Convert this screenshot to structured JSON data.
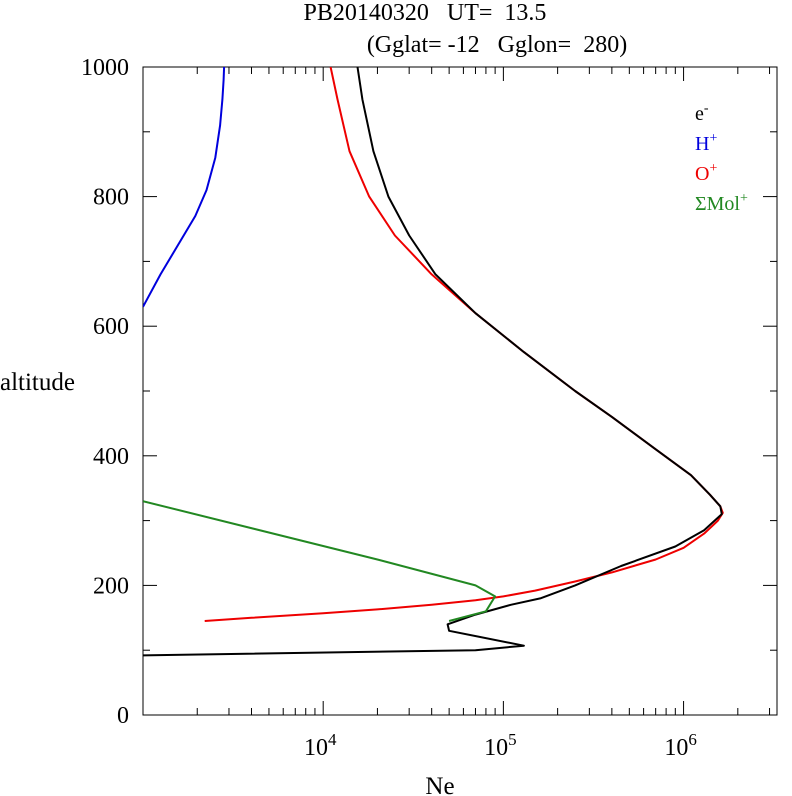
{
  "chart_data": {
    "type": "line",
    "title": "PB20140320   UT=  13.5",
    "subtitle": "(Gglat= -12   Gglon=  280)",
    "xlabel": "Ne",
    "ylabel": "altitude",
    "xscale": "log",
    "xlim": [
      1000,
      3300000
    ],
    "ylim": [
      0,
      1000
    ],
    "x_ticks": [
      {
        "value": 10000,
        "base": "10",
        "exp": "4"
      },
      {
        "value": 100000,
        "base": "10",
        "exp": "5"
      },
      {
        "value": 1000000,
        "base": "10",
        "exp": "6"
      }
    ],
    "y_ticks": [
      {
        "value": 0,
        "label": "0"
      },
      {
        "value": 200,
        "label": "200"
      },
      {
        "value": 400,
        "label": "400"
      },
      {
        "value": 600,
        "label": "600"
      },
      {
        "value": 800,
        "label": "800"
      },
      {
        "value": 1000,
        "label": "1000"
      }
    ],
    "grid": false,
    "legend_position": "top-right",
    "series": [
      {
        "name": "H",
        "sup": "+",
        "color": "#0000dd",
        "points": [
          [
            1000,
            630
          ],
          [
            1250,
            680
          ],
          [
            1600,
            730
          ],
          [
            1950,
            770
          ],
          [
            2250,
            810
          ],
          [
            2520,
            860
          ],
          [
            2680,
            910
          ],
          [
            2760,
            950
          ],
          [
            2800,
            980
          ],
          [
            2820,
            1000
          ]
        ]
      },
      {
        "name": "O",
        "sup": "+",
        "color": "#ee0000",
        "points": [
          [
            2200,
            145
          ],
          [
            4000,
            150
          ],
          [
            10000,
            157
          ],
          [
            20000,
            163
          ],
          [
            40000,
            170
          ],
          [
            70000,
            177
          ],
          [
            100000,
            183
          ],
          [
            150000,
            192
          ],
          [
            250000,
            206
          ],
          [
            400000,
            220
          ],
          [
            700000,
            240
          ],
          [
            1000000,
            258
          ],
          [
            1300000,
            280
          ],
          [
            1550000,
            300
          ],
          [
            1650000,
            312
          ],
          [
            1600000,
            322
          ],
          [
            1400000,
            340
          ],
          [
            1100000,
            370
          ],
          [
            700000,
            410
          ],
          [
            400000,
            460
          ],
          [
            250000,
            500
          ],
          [
            130000,
            560
          ],
          [
            70000,
            620
          ],
          [
            40000,
            680
          ],
          [
            25000,
            740
          ],
          [
            18000,
            800
          ],
          [
            14000,
            870
          ],
          [
            12000,
            950
          ],
          [
            11000,
            1000
          ]
        ]
      },
      {
        "name": "e",
        "sup": "-",
        "color": "#000000",
        "points": [
          [
            1000,
            92
          ],
          [
            70000,
            100
          ],
          [
            130000,
            107
          ],
          [
            50000,
            130
          ],
          [
            49000,
            140
          ],
          [
            70000,
            155
          ],
          [
            110000,
            170
          ],
          [
            160000,
            180
          ],
          [
            250000,
            200
          ],
          [
            450000,
            230
          ],
          [
            900000,
            260
          ],
          [
            1300000,
            285
          ],
          [
            1630000,
            310
          ],
          [
            1600000,
            322
          ],
          [
            1400000,
            340
          ],
          [
            1100000,
            370
          ],
          [
            700000,
            410
          ],
          [
            400000,
            460
          ],
          [
            250000,
            500
          ],
          [
            130000,
            560
          ],
          [
            70000,
            620
          ],
          [
            42000,
            680
          ],
          [
            30000,
            740
          ],
          [
            23000,
            800
          ],
          [
            19000,
            870
          ],
          [
            16500,
            950
          ],
          [
            15500,
            1000
          ]
        ]
      },
      {
        "name": "ΣMol",
        "sup": "+",
        "color": "#228822",
        "points": [
          [
            1000,
            330
          ],
          [
            20000,
            240
          ],
          [
            70000,
            200
          ],
          [
            90000,
            183
          ],
          [
            80000,
            160
          ],
          [
            50000,
            145
          ]
        ]
      }
    ],
    "legend_order": [
      2,
      0,
      1,
      3
    ]
  }
}
